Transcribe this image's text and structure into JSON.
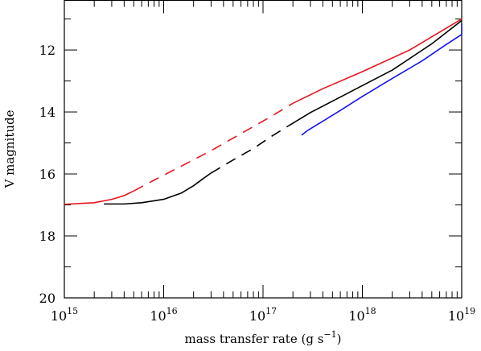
{
  "chart_data": {
    "type": "line",
    "title": "",
    "xlabel": "mass transfer rate (g s",
    "xlabel_sup": "−1",
    "xlabel_close": ")",
    "ylabel": "V magnitude",
    "xscale": "log",
    "xlim": [
      1000000000000000.0,
      1e+19
    ],
    "ylim": [
      20,
      10.4
    ],
    "y_inverted": true,
    "grid": false,
    "legend": "none",
    "x_ticks": [
      {
        "base": "10",
        "exp": "15",
        "value": 1000000000000000.0
      },
      {
        "base": "10",
        "exp": "16",
        "value": 1e+16
      },
      {
        "base": "10",
        "exp": "17",
        "value": 1e+17
      },
      {
        "base": "10",
        "exp": "18",
        "value": 1e+18
      },
      {
        "base": "10",
        "exp": "19",
        "value": 1e+19
      }
    ],
    "y_ticks": [
      "12",
      "14",
      "16",
      "18",
      "20"
    ],
    "series": [
      {
        "color": "#000000",
        "segments": [
          {
            "style": "solid",
            "points": [
              [
                2500000000000000.0,
                16.97
              ],
              [
                4000000000000000.0,
                16.97
              ],
              [
                6000000000000000.0,
                16.93
              ],
              [
                1e+16,
                16.82
              ],
              [
                1.5e+16,
                16.62
              ],
              [
                2e+16,
                16.38
              ],
              [
                2.5e+16,
                16.15
              ],
              [
                3e+16,
                15.97
              ]
            ]
          },
          {
            "style": "dashed",
            "points": [
              [
                3e+16,
                15.97
              ],
              [
                5e+16,
                15.55
              ],
              [
                8e+16,
                15.18
              ],
              [
                1.2e+17,
                14.8
              ],
              [
                1.8e+17,
                14.45
              ]
            ]
          },
          {
            "style": "solid",
            "points": [
              [
                1.8e+17,
                14.45
              ],
              [
                3e+17,
                14.02
              ],
              [
                6e+17,
                13.52
              ],
              [
                1e+18,
                13.15
              ],
              [
                2e+18,
                12.65
              ],
              [
                5e+18,
                11.8
              ],
              [
                1e+19,
                11.05
              ]
            ]
          }
        ]
      },
      {
        "color": "#e8141e",
        "segments": [
          {
            "style": "solid",
            "points": [
              [
                1000000000000000.0,
                16.98
              ],
              [
                2000000000000000.0,
                16.93
              ],
              [
                3000000000000000.0,
                16.82
              ],
              [
                4000000000000000.0,
                16.7
              ],
              [
                5000000000000000.0,
                16.55
              ]
            ]
          },
          {
            "style": "dashed",
            "points": [
              [
                5000000000000000.0,
                16.55
              ],
              [
                8000000000000000.0,
                16.2
              ],
              [
                1.5e+16,
                15.75
              ],
              [
                3e+16,
                15.25
              ],
              [
                6e+16,
                14.7
              ],
              [
                1.2e+17,
                14.15
              ],
              [
                2e+17,
                13.72
              ]
            ]
          },
          {
            "style": "solid",
            "points": [
              [
                2e+17,
                13.72
              ],
              [
                4e+17,
                13.25
              ],
              [
                1e+18,
                12.7
              ],
              [
                3e+18,
                12.0
              ],
              [
                1e+19,
                11.0
              ]
            ]
          }
        ]
      },
      {
        "color": "#1414f0",
        "segments": [
          {
            "style": "dashed",
            "points": [
              [
                2.45e+17,
                14.75
              ],
              [
                2.8e+17,
                14.6
              ]
            ]
          },
          {
            "style": "solid",
            "points": [
              [
                2.8e+17,
                14.6
              ],
              [
                4e+17,
                14.3
              ],
              [
                6e+17,
                13.95
              ],
              [
                1e+18,
                13.5
              ],
              [
                2e+18,
                12.92
              ],
              [
                4e+18,
                12.35
              ],
              [
                7e+18,
                11.82
              ],
              [
                1e+19,
                11.5
              ],
              [
                1e+19,
                11.15
              ]
            ]
          }
        ]
      }
    ]
  }
}
